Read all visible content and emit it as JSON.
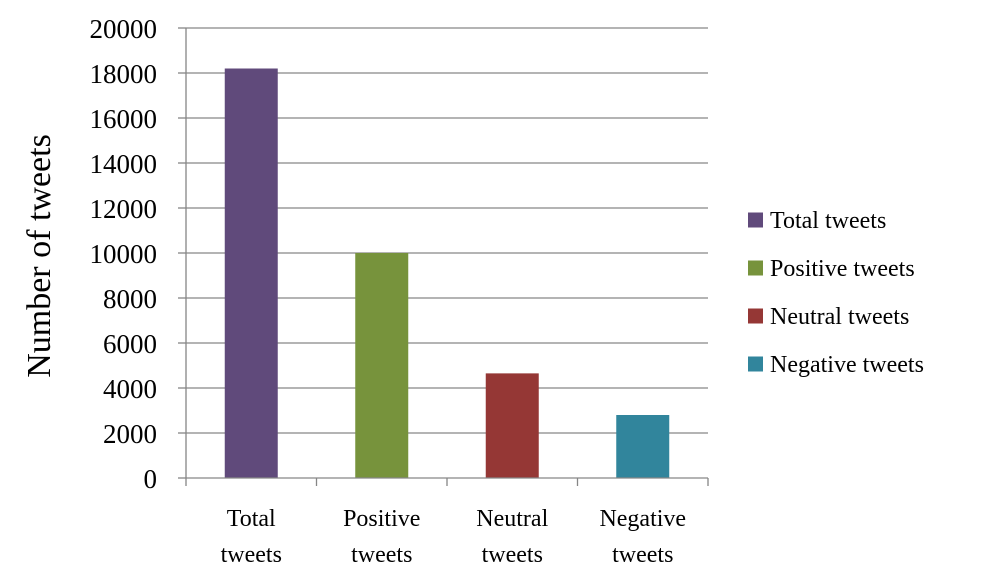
{
  "chart_data": {
    "type": "bar",
    "title": "",
    "xlabel": "",
    "ylabel": "Number of tweets",
    "ylim": [
      0,
      20000
    ],
    "yticks": [
      0,
      2000,
      4000,
      6000,
      8000,
      10000,
      12000,
      14000,
      16000,
      18000,
      20000
    ],
    "grid": true,
    "legend_position": "right",
    "categories": [
      [
        "Total",
        "tweets"
      ],
      [
        "Positive",
        "tweets"
      ],
      [
        "Neutral",
        "tweets"
      ],
      [
        "Negative",
        "tweets"
      ]
    ],
    "values": [
      18200,
      10000,
      4650,
      2800
    ],
    "legend": [
      {
        "label": "Total tweets",
        "color": "#604a7b"
      },
      {
        "label": "Positive tweets",
        "color": "#77933c"
      },
      {
        "label": "Neutral tweets",
        "color": "#953735"
      },
      {
        "label": "Negative tweets",
        "color": "#31859c"
      }
    ],
    "colors": {
      "grid": "#868686",
      "axis": "#868686"
    }
  }
}
